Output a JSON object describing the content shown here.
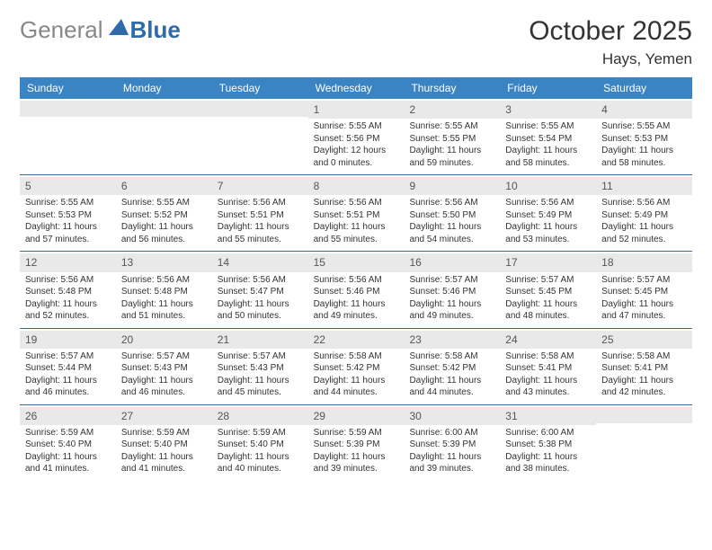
{
  "logo": {
    "gray": "General",
    "blue": "Blue"
  },
  "title": "October 2025",
  "location": "Hays, Yemen",
  "weekdays": [
    "Sunday",
    "Monday",
    "Tuesday",
    "Wednesday",
    "Thursday",
    "Friday",
    "Saturday"
  ],
  "colors": {
    "header_bar": "#3b84c4",
    "row_border": "#3b6a9a",
    "daynum_bg": "#e9e9e9",
    "logo_gray": "#888888",
    "logo_blue": "#2f6aaa"
  },
  "weeks": [
    [
      null,
      null,
      null,
      {
        "n": "1",
        "sr": "Sunrise: 5:55 AM",
        "ss": "Sunset: 5:56 PM",
        "dl": "Daylight: 12 hours and 0 minutes."
      },
      {
        "n": "2",
        "sr": "Sunrise: 5:55 AM",
        "ss": "Sunset: 5:55 PM",
        "dl": "Daylight: 11 hours and 59 minutes."
      },
      {
        "n": "3",
        "sr": "Sunrise: 5:55 AM",
        "ss": "Sunset: 5:54 PM",
        "dl": "Daylight: 11 hours and 58 minutes."
      },
      {
        "n": "4",
        "sr": "Sunrise: 5:55 AM",
        "ss": "Sunset: 5:53 PM",
        "dl": "Daylight: 11 hours and 58 minutes."
      }
    ],
    [
      {
        "n": "5",
        "sr": "Sunrise: 5:55 AM",
        "ss": "Sunset: 5:53 PM",
        "dl": "Daylight: 11 hours and 57 minutes."
      },
      {
        "n": "6",
        "sr": "Sunrise: 5:55 AM",
        "ss": "Sunset: 5:52 PM",
        "dl": "Daylight: 11 hours and 56 minutes."
      },
      {
        "n": "7",
        "sr": "Sunrise: 5:56 AM",
        "ss": "Sunset: 5:51 PM",
        "dl": "Daylight: 11 hours and 55 minutes."
      },
      {
        "n": "8",
        "sr": "Sunrise: 5:56 AM",
        "ss": "Sunset: 5:51 PM",
        "dl": "Daylight: 11 hours and 55 minutes."
      },
      {
        "n": "9",
        "sr": "Sunrise: 5:56 AM",
        "ss": "Sunset: 5:50 PM",
        "dl": "Daylight: 11 hours and 54 minutes."
      },
      {
        "n": "10",
        "sr": "Sunrise: 5:56 AM",
        "ss": "Sunset: 5:49 PM",
        "dl": "Daylight: 11 hours and 53 minutes."
      },
      {
        "n": "11",
        "sr": "Sunrise: 5:56 AM",
        "ss": "Sunset: 5:49 PM",
        "dl": "Daylight: 11 hours and 52 minutes."
      }
    ],
    [
      {
        "n": "12",
        "sr": "Sunrise: 5:56 AM",
        "ss": "Sunset: 5:48 PM",
        "dl": "Daylight: 11 hours and 52 minutes."
      },
      {
        "n": "13",
        "sr": "Sunrise: 5:56 AM",
        "ss": "Sunset: 5:48 PM",
        "dl": "Daylight: 11 hours and 51 minutes."
      },
      {
        "n": "14",
        "sr": "Sunrise: 5:56 AM",
        "ss": "Sunset: 5:47 PM",
        "dl": "Daylight: 11 hours and 50 minutes."
      },
      {
        "n": "15",
        "sr": "Sunrise: 5:56 AM",
        "ss": "Sunset: 5:46 PM",
        "dl": "Daylight: 11 hours and 49 minutes."
      },
      {
        "n": "16",
        "sr": "Sunrise: 5:57 AM",
        "ss": "Sunset: 5:46 PM",
        "dl": "Daylight: 11 hours and 49 minutes."
      },
      {
        "n": "17",
        "sr": "Sunrise: 5:57 AM",
        "ss": "Sunset: 5:45 PM",
        "dl": "Daylight: 11 hours and 48 minutes."
      },
      {
        "n": "18",
        "sr": "Sunrise: 5:57 AM",
        "ss": "Sunset: 5:45 PM",
        "dl": "Daylight: 11 hours and 47 minutes."
      }
    ],
    [
      {
        "n": "19",
        "sr": "Sunrise: 5:57 AM",
        "ss": "Sunset: 5:44 PM",
        "dl": "Daylight: 11 hours and 46 minutes."
      },
      {
        "n": "20",
        "sr": "Sunrise: 5:57 AM",
        "ss": "Sunset: 5:43 PM",
        "dl": "Daylight: 11 hours and 46 minutes."
      },
      {
        "n": "21",
        "sr": "Sunrise: 5:57 AM",
        "ss": "Sunset: 5:43 PM",
        "dl": "Daylight: 11 hours and 45 minutes."
      },
      {
        "n": "22",
        "sr": "Sunrise: 5:58 AM",
        "ss": "Sunset: 5:42 PM",
        "dl": "Daylight: 11 hours and 44 minutes."
      },
      {
        "n": "23",
        "sr": "Sunrise: 5:58 AM",
        "ss": "Sunset: 5:42 PM",
        "dl": "Daylight: 11 hours and 44 minutes."
      },
      {
        "n": "24",
        "sr": "Sunrise: 5:58 AM",
        "ss": "Sunset: 5:41 PM",
        "dl": "Daylight: 11 hours and 43 minutes."
      },
      {
        "n": "25",
        "sr": "Sunrise: 5:58 AM",
        "ss": "Sunset: 5:41 PM",
        "dl": "Daylight: 11 hours and 42 minutes."
      }
    ],
    [
      {
        "n": "26",
        "sr": "Sunrise: 5:59 AM",
        "ss": "Sunset: 5:40 PM",
        "dl": "Daylight: 11 hours and 41 minutes."
      },
      {
        "n": "27",
        "sr": "Sunrise: 5:59 AM",
        "ss": "Sunset: 5:40 PM",
        "dl": "Daylight: 11 hours and 41 minutes."
      },
      {
        "n": "28",
        "sr": "Sunrise: 5:59 AM",
        "ss": "Sunset: 5:40 PM",
        "dl": "Daylight: 11 hours and 40 minutes."
      },
      {
        "n": "29",
        "sr": "Sunrise: 5:59 AM",
        "ss": "Sunset: 5:39 PM",
        "dl": "Daylight: 11 hours and 39 minutes."
      },
      {
        "n": "30",
        "sr": "Sunrise: 6:00 AM",
        "ss": "Sunset: 5:39 PM",
        "dl": "Daylight: 11 hours and 39 minutes."
      },
      {
        "n": "31",
        "sr": "Sunrise: 6:00 AM",
        "ss": "Sunset: 5:38 PM",
        "dl": "Daylight: 11 hours and 38 minutes."
      },
      null
    ]
  ]
}
